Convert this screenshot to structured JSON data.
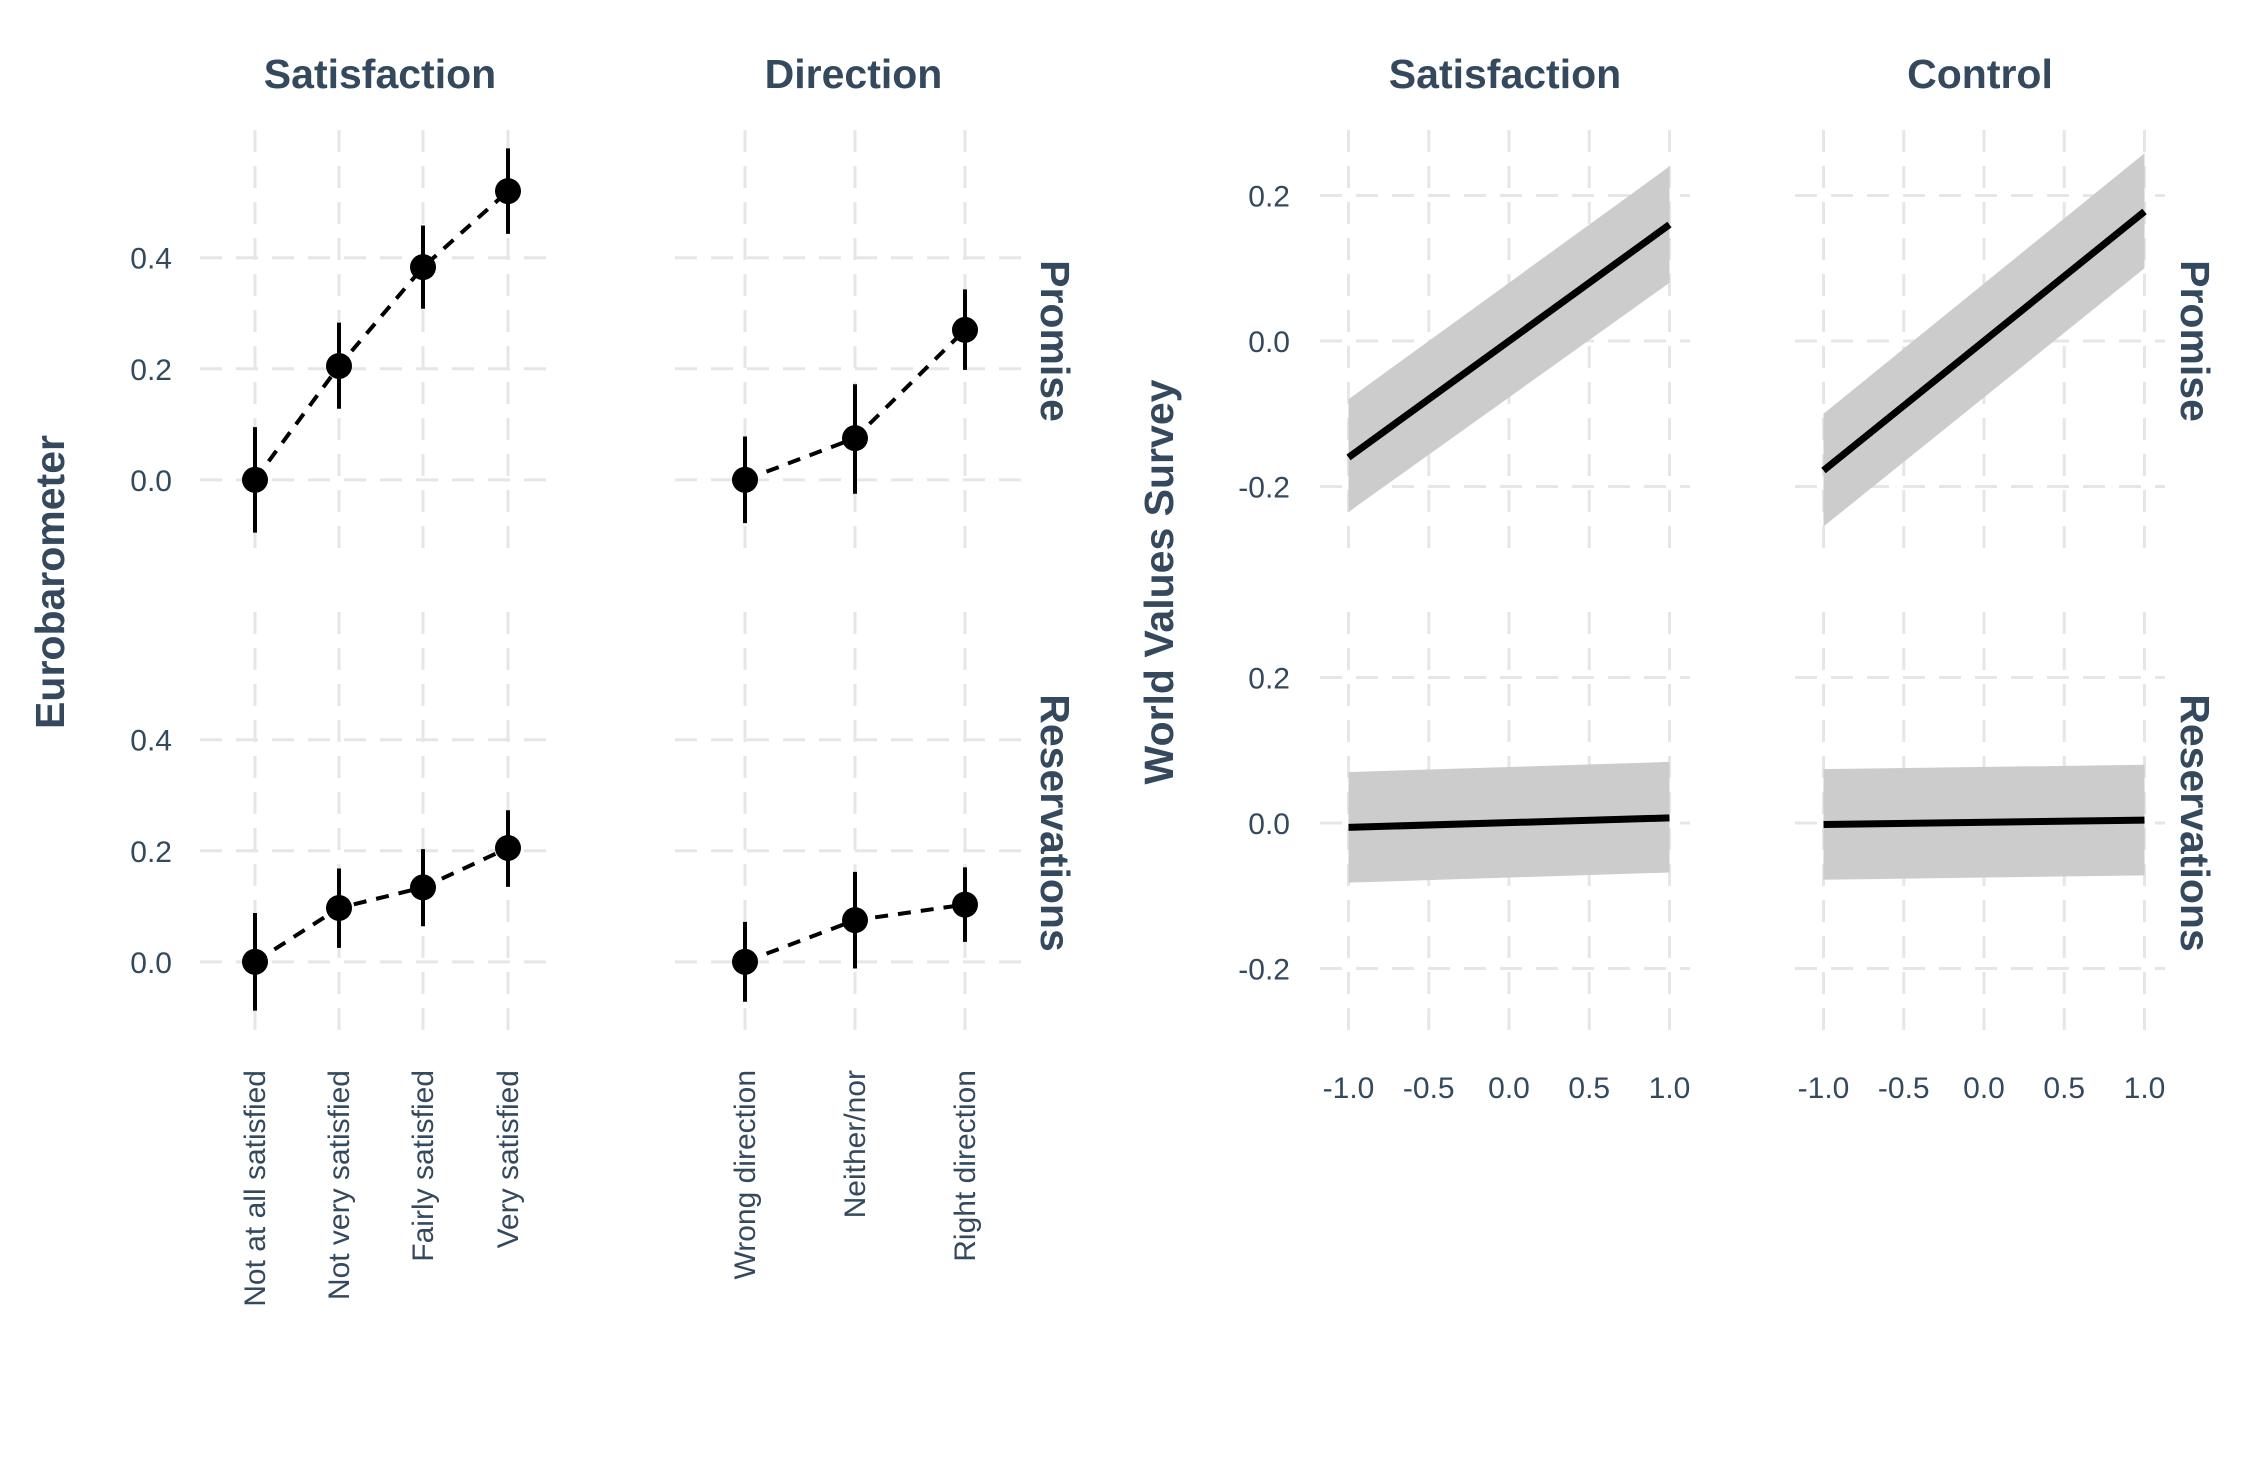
{
  "chart_data": [
    {
      "type": "scatter",
      "group_label": "Eurobarometer",
      "row_labels": [
        "Promise",
        "Reservations"
      ],
      "panels": [
        {
          "facet": "Satisfaction",
          "categories": [
            "Not at all satisfied",
            "Not very satisfied",
            "Fairly satisfied",
            "Very satisfied"
          ],
          "rows": [
            {
              "row": "Promise",
              "estimate": [
                0.0,
                0.205,
                0.383,
                0.52
              ],
              "lower": [
                -0.095,
                0.128,
                0.308,
                0.443
              ],
              "upper": [
                0.095,
                0.283,
                0.458,
                0.597
              ]
            },
            {
              "row": "Reservations",
              "estimate": [
                0.0,
                0.097,
                0.134,
                0.205
              ],
              "lower": [
                -0.088,
                0.025,
                0.064,
                0.135
              ],
              "upper": [
                0.088,
                0.168,
                0.203,
                0.273
              ]
            }
          ]
        },
        {
          "facet": "Direction",
          "categories": [
            "Wrong direction",
            "Neither/nor",
            "Right direction"
          ],
          "rows": [
            {
              "row": "Promise",
              "estimate": [
                0.0,
                0.075,
                0.27
              ],
              "lower": [
                -0.078,
                -0.025,
                0.198
              ],
              "upper": [
                0.078,
                0.172,
                0.343
              ]
            },
            {
              "row": "Reservations",
              "estimate": [
                0.0,
                0.075,
                0.103
              ],
              "lower": [
                -0.072,
                -0.012,
                0.036
              ],
              "upper": [
                0.072,
                0.162,
                0.17
              ]
            }
          ]
        }
      ],
      "y_ticks": [
        0.0,
        0.2,
        0.4
      ],
      "y_tick_labels": [
        "0.0",
        "0.2",
        "0.4"
      ],
      "ylim": [
        -0.13,
        0.63
      ],
      "grid": true
    },
    {
      "type": "line",
      "group_label": "World Values Survey",
      "row_labels": [
        "Promise",
        "Reservations"
      ],
      "panels": [
        {
          "facet": "Satisfaction",
          "rows": [
            {
              "row": "Promise",
              "x": [
                -1.0,
                1.0
              ],
              "y": [
                -0.16,
                0.16
              ],
              "lower": [
                -0.235,
                0.08
              ],
              "upper": [
                -0.08,
                0.24
              ]
            },
            {
              "row": "Reservations",
              "x": [
                -1.0,
                1.0
              ],
              "y": [
                -0.006,
                0.007
              ],
              "lower": [
                -0.082,
                -0.068
              ],
              "upper": [
                0.07,
                0.084
              ]
            }
          ]
        },
        {
          "facet": "Control",
          "rows": [
            {
              "row": "Promise",
              "x": [
                -1.0,
                1.0
              ],
              "y": [
                -0.178,
                0.178
              ],
              "lower": [
                -0.255,
                0.1
              ],
              "upper": [
                -0.1,
                0.258
              ]
            },
            {
              "row": "Reservations",
              "x": [
                -1.0,
                1.0
              ],
              "y": [
                -0.002,
                0.004
              ],
              "lower": [
                -0.078,
                -0.072
              ],
              "upper": [
                0.074,
                0.08
              ]
            }
          ]
        }
      ],
      "x_ticks": [
        -1.0,
        -0.5,
        0.0,
        0.5,
        1.0
      ],
      "x_tick_labels": [
        "-1.0",
        "-0.5",
        "0.0",
        "0.5",
        "1.0"
      ],
      "xlim": [
        -1.1,
        1.1
      ],
      "y_ticks": [
        -0.2,
        0.0,
        0.2
      ],
      "y_tick_labels": [
        "-0.2",
        "0.0",
        "0.2"
      ],
      "ylim": [
        -0.29,
        0.29
      ],
      "grid": true
    }
  ],
  "colors": {
    "text": "#34495e",
    "grid": "#e6e6e6",
    "marks": "#000000",
    "ribbon": "#cccccc"
  }
}
